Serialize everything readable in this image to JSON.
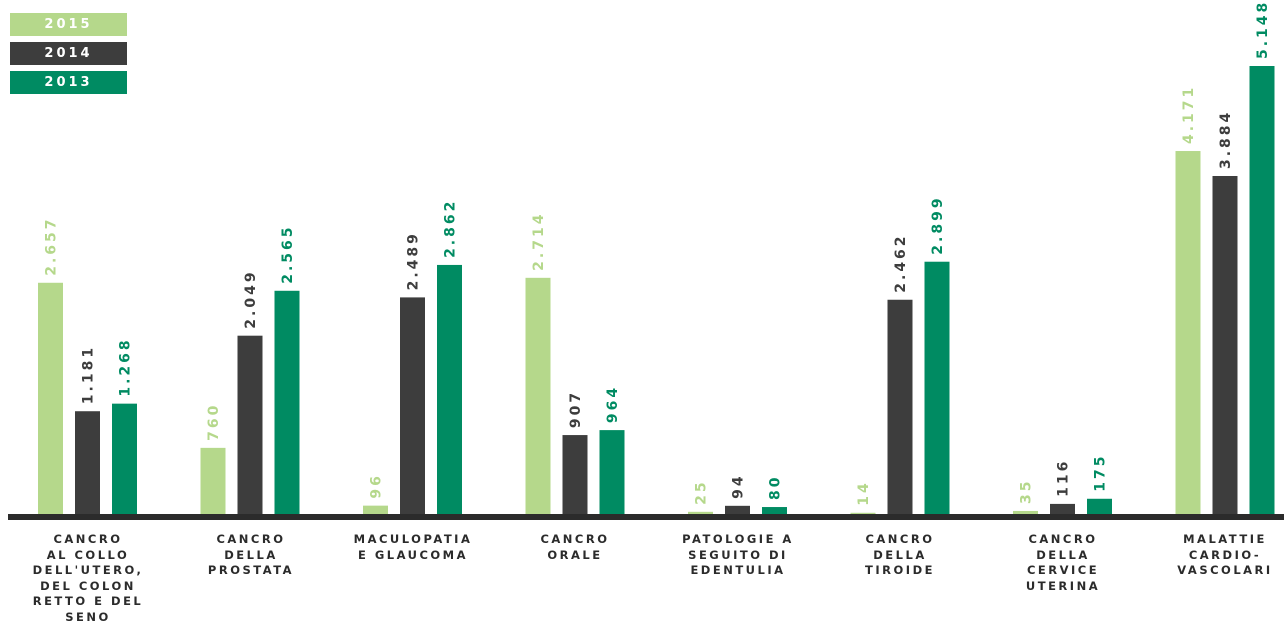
{
  "colors": {
    "2015": "#b5d88b",
    "2014": "#3d3d3d",
    "2013": "#008b62",
    "baseline": "#2b2b2b"
  },
  "chart_data": {
    "type": "bar",
    "title": "",
    "xlabel": "",
    "ylabel": "",
    "ylim": [
      0,
      5148
    ],
    "legend_position": "top-left",
    "grid": false,
    "categories": [
      "CANCRO\nAL COLLO\nDELL'UTERO,\nDEL COLON\nRETTO E DEL\nSENO",
      "CANCRO\nDELLA\nPROSTATA",
      "MACULOPATIA\nE GLAUCOMA",
      "CANCRO\nORALE",
      "PATOLOGIE A\nSEGUITO DI\nEDENTULIA",
      "CANCRO\nDELLA\nTIROIDE",
      "CANCRO\nDELLA\nCERVICE\nUTERINA",
      "MALATTIE\nCARDIO-\nVASCOLARI"
    ],
    "series": [
      {
        "name": "2015",
        "values": [
          2657,
          760,
          96,
          2714,
          25,
          14,
          35,
          4171
        ],
        "labels": [
          "2.657",
          "760",
          "96",
          "2.714",
          "25",
          "14",
          "35",
          "4.171"
        ]
      },
      {
        "name": "2014",
        "values": [
          1181,
          2049,
          2489,
          907,
          94,
          2462,
          116,
          3884
        ],
        "labels": [
          "1.181",
          "2.049",
          "2.489",
          "907",
          "94",
          "2.462",
          "116",
          "3.884"
        ]
      },
      {
        "name": "2013",
        "values": [
          1268,
          2565,
          2862,
          964,
          80,
          2899,
          175,
          5148
        ],
        "labels": [
          "1.268",
          "2.565",
          "2.862",
          "964",
          "80",
          "2.899",
          "175",
          "5.148"
        ]
      }
    ]
  }
}
